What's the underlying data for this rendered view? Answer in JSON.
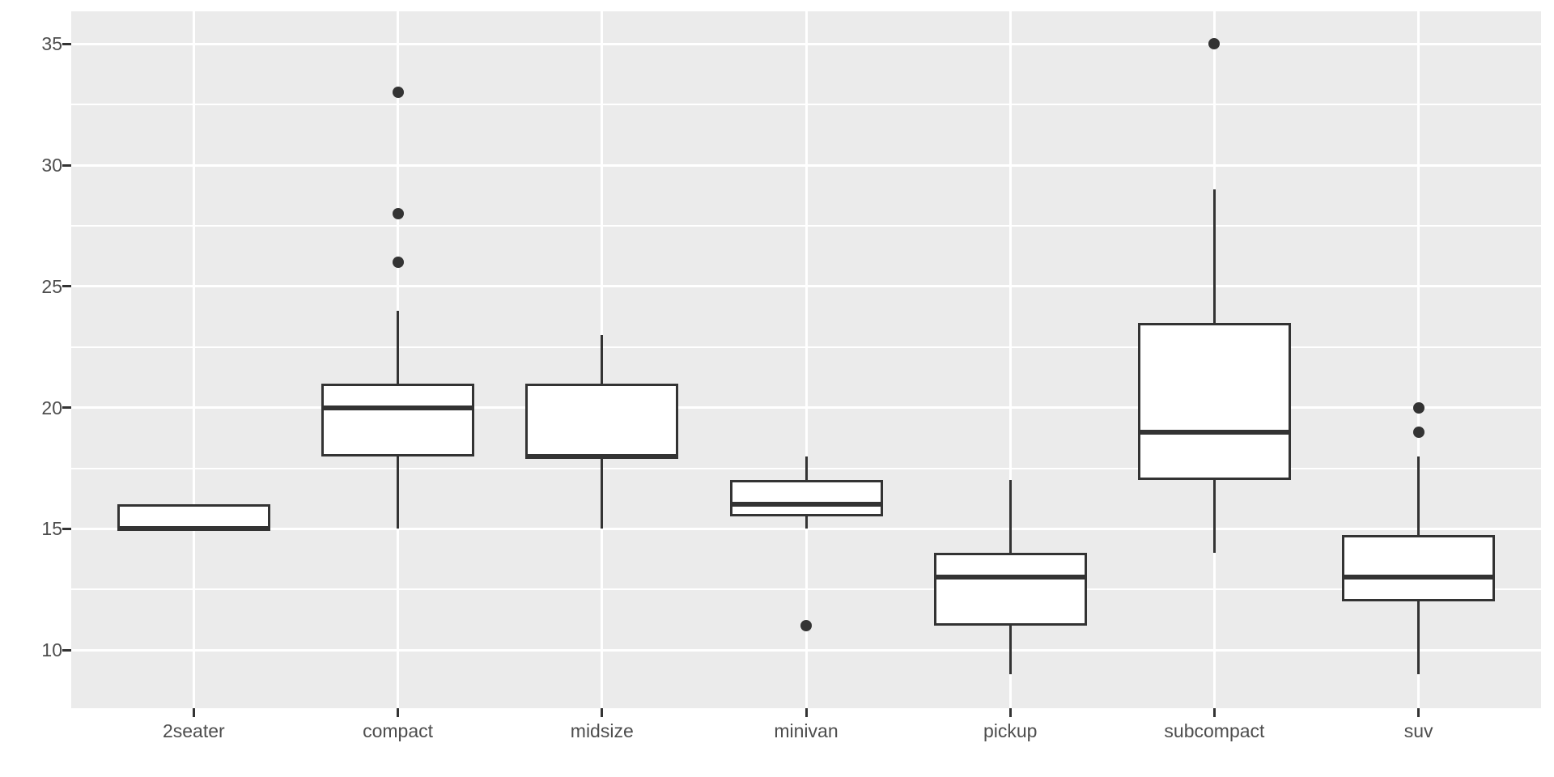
{
  "chart_data": {
    "type": "boxplot",
    "title": "",
    "xlabel": "",
    "ylabel": "",
    "categories": [
      "2seater",
      "compact",
      "midsize",
      "minivan",
      "pickup",
      "subcompact",
      "suv"
    ],
    "series": [
      {
        "category": "2seater",
        "whisker_low": 15,
        "q1": 15,
        "median": 15,
        "q3": 16,
        "whisker_high": 16,
        "outliers": []
      },
      {
        "category": "compact",
        "whisker_low": 15,
        "q1": 18,
        "median": 20,
        "q3": 21,
        "whisker_high": 24,
        "outliers": [
          26,
          28,
          33
        ]
      },
      {
        "category": "midsize",
        "whisker_low": 15,
        "q1": 18,
        "median": 18,
        "q3": 21,
        "whisker_high": 23,
        "outliers": []
      },
      {
        "category": "minivan",
        "whisker_low": 15,
        "q1": 15.5,
        "median": 16,
        "q3": 17,
        "whisker_high": 18,
        "outliers": [
          11
        ]
      },
      {
        "category": "pickup",
        "whisker_low": 9,
        "q1": 11,
        "median": 13,
        "q3": 14,
        "whisker_high": 17,
        "outliers": []
      },
      {
        "category": "subcompact",
        "whisker_low": 14,
        "q1": 17,
        "median": 19,
        "q3": 23.5,
        "whisker_high": 29,
        "outliers": [
          35
        ]
      },
      {
        "category": "suv",
        "whisker_low": 9,
        "q1": 12,
        "median": 13,
        "q3": 14.75,
        "whisker_high": 18,
        "outliers": [
          19,
          20
        ]
      }
    ],
    "y_axis": {
      "ticks": [
        10,
        15,
        20,
        25,
        30,
        35
      ],
      "minor_ticks": [
        12.5,
        17.5,
        22.5,
        27.5,
        32.5
      ],
      "range": [
        7.6,
        36.35
      ]
    },
    "grid": "major-and-minor-horizontal, major-vertical-at-categories",
    "legend": "none",
    "theme": {
      "page_bg": "#FFFFFF",
      "panel_bg": "#EBEBEB",
      "grid_color": "#FFFFFF",
      "box_fill": "#FFFFFF",
      "line_color": "#333333",
      "axis_text_color": "#4D4D4D"
    }
  }
}
